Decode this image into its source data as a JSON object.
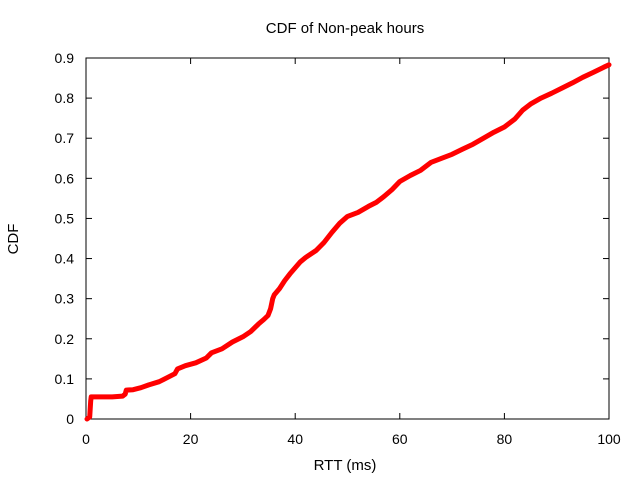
{
  "chart_data": {
    "type": "line",
    "title": "CDF of Non-peak hours",
    "xlabel": "RTT (ms)",
    "ylabel": "CDF",
    "xlim": [
      0,
      100
    ],
    "ylim": [
      0,
      0.9
    ],
    "x_ticks": [
      0,
      20,
      40,
      60,
      80,
      100
    ],
    "y_ticks": [
      0,
      0.1,
      0.2,
      0.3,
      0.4,
      0.5,
      0.6,
      0.7,
      0.8,
      0.9
    ],
    "x_tick_labels": [
      "0",
      "20",
      "40",
      "60",
      "80",
      "100"
    ],
    "y_tick_labels": [
      "0",
      "0.1",
      "0.2",
      "0.3",
      "0.4",
      "0.5",
      "0.6",
      "0.7",
      "0.8",
      "0.9"
    ],
    "grid": false,
    "legend": "none",
    "series": [
      {
        "color": "#ff0000",
        "points": [
          [
            0.2,
            0.0
          ],
          [
            0.7,
            0.005
          ],
          [
            0.9,
            0.045
          ],
          [
            1.0,
            0.055
          ],
          [
            3.0,
            0.055
          ],
          [
            5.0,
            0.055
          ],
          [
            7.0,
            0.057
          ],
          [
            7.5,
            0.062
          ],
          [
            7.7,
            0.072
          ],
          [
            9.0,
            0.073
          ],
          [
            10.5,
            0.078
          ],
          [
            12.0,
            0.085
          ],
          [
            14.0,
            0.093
          ],
          [
            15.5,
            0.103
          ],
          [
            17.0,
            0.113
          ],
          [
            17.5,
            0.125
          ],
          [
            19.0,
            0.133
          ],
          [
            21.0,
            0.14
          ],
          [
            23.0,
            0.152
          ],
          [
            24.0,
            0.165
          ],
          [
            26.0,
            0.175
          ],
          [
            28.0,
            0.192
          ],
          [
            30.0,
            0.205
          ],
          [
            31.5,
            0.218
          ],
          [
            33.0,
            0.237
          ],
          [
            34.0,
            0.248
          ],
          [
            34.8,
            0.258
          ],
          [
            35.3,
            0.275
          ],
          [
            35.7,
            0.3
          ],
          [
            36.0,
            0.31
          ],
          [
            37.0,
            0.325
          ],
          [
            38.0,
            0.345
          ],
          [
            39.0,
            0.362
          ],
          [
            40.0,
            0.377
          ],
          [
            41.0,
            0.392
          ],
          [
            42.0,
            0.403
          ],
          [
            44.0,
            0.42
          ],
          [
            45.5,
            0.44
          ],
          [
            47.0,
            0.465
          ],
          [
            48.5,
            0.488
          ],
          [
            50.0,
            0.505
          ],
          [
            52.0,
            0.515
          ],
          [
            54.0,
            0.53
          ],
          [
            55.5,
            0.54
          ],
          [
            57.0,
            0.555
          ],
          [
            58.5,
            0.572
          ],
          [
            60.0,
            0.592
          ],
          [
            62.0,
            0.607
          ],
          [
            64.0,
            0.62
          ],
          [
            66.0,
            0.64
          ],
          [
            68.0,
            0.65
          ],
          [
            70.0,
            0.66
          ],
          [
            72.0,
            0.673
          ],
          [
            74.0,
            0.685
          ],
          [
            76.0,
            0.7
          ],
          [
            78.0,
            0.715
          ],
          [
            80.0,
            0.728
          ],
          [
            82.0,
            0.748
          ],
          [
            83.5,
            0.77
          ],
          [
            85.0,
            0.785
          ],
          [
            87.0,
            0.8
          ],
          [
            89.0,
            0.812
          ],
          [
            91.0,
            0.825
          ],
          [
            93.0,
            0.838
          ],
          [
            95.0,
            0.852
          ],
          [
            97.0,
            0.864
          ],
          [
            99.0,
            0.877
          ],
          [
            100.0,
            0.883
          ]
        ]
      }
    ]
  }
}
